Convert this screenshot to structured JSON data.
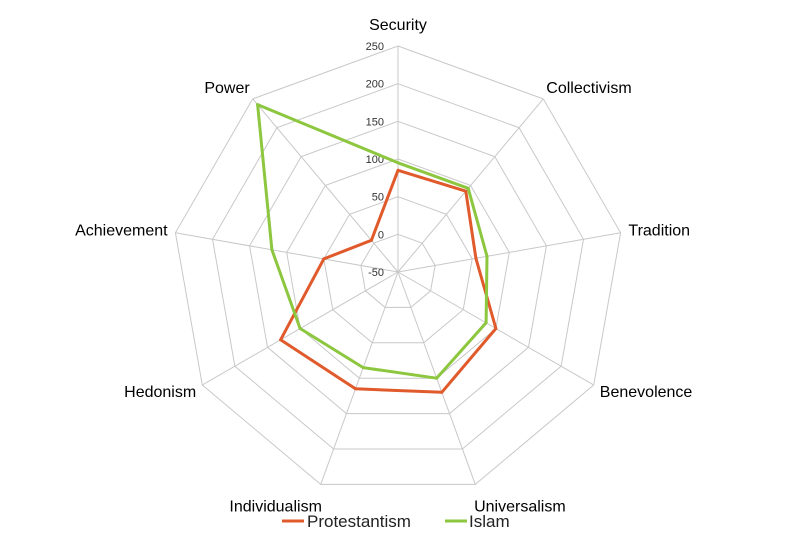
{
  "chart_data": {
    "type": "radar",
    "title": "",
    "categories": [
      "Security",
      "Collectivism",
      "Tradition",
      "Benevolence",
      "Universalism",
      "Individualism",
      "Hedonism",
      "Achievement",
      "Power"
    ],
    "rlim": [
      -50,
      250
    ],
    "ticks": [
      -50,
      0,
      50,
      100,
      150,
      200,
      250
    ],
    "grid": true,
    "legend": "bottom",
    "series": [
      {
        "name": "Protestantism",
        "color": "#e05a2b",
        "values": [
          85,
          90,
          55,
          100,
          120,
          115,
          130,
          50,
          5
        ]
      },
      {
        "name": "Islam",
        "color": "#8dc63f",
        "values": [
          95,
          95,
          70,
          85,
          100,
          85,
          100,
          120,
          240
        ]
      }
    ]
  }
}
